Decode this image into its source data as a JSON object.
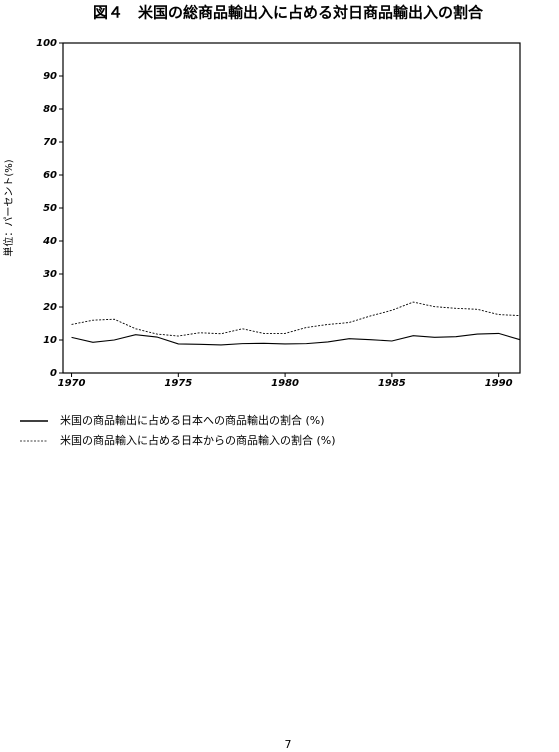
{
  "chart_data": {
    "type": "line",
    "title": "図４　米国の総商品輸出入に占める対日商品輸出入の割合",
    "y_label": "単位：パーセント(%)",
    "x": [
      1970,
      1971,
      1972,
      1973,
      1974,
      1975,
      1976,
      1977,
      1978,
      1979,
      1980,
      1981,
      1982,
      1983,
      1984,
      1985,
      1986,
      1987,
      1988,
      1989,
      1990,
      1991
    ],
    "xlim": [
      1969.6,
      1991
    ],
    "xticks": [
      1970,
      1975,
      1980,
      1985,
      1990
    ],
    "ylim": [
      0,
      100
    ],
    "yticks": [
      0,
      10,
      20,
      30,
      40,
      50,
      60,
      70,
      80,
      90,
      100
    ],
    "series": [
      {
        "name": "米国の商品輸出に占める日本への商品輸出の割合 (%)",
        "color": "#000000",
        "style": "solid",
        "values": [
          10.8,
          9.3,
          10.0,
          11.6,
          10.9,
          8.8,
          8.7,
          8.5,
          8.9,
          9.0,
          8.8,
          8.9,
          9.4,
          10.4,
          10.1,
          9.7,
          11.3,
          10.8,
          11.0,
          11.8,
          12.0,
          10.1
        ]
      },
      {
        "name": "米国の商品輸入に占める日本からの商品輸入の割合 (%)",
        "color": "#000000",
        "style": "dotted",
        "values": [
          14.7,
          16.0,
          16.3,
          13.4,
          11.8,
          11.2,
          12.2,
          11.9,
          13.4,
          12.0,
          12.0,
          13.8,
          14.7,
          15.3,
          17.3,
          19.0,
          21.5,
          20.1,
          19.6,
          19.3,
          17.7,
          17.4
        ]
      }
    ]
  },
  "page_number": "7"
}
